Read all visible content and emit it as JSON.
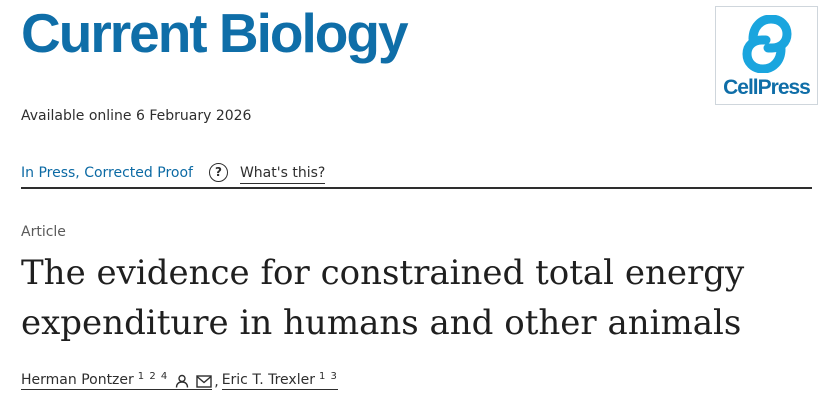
{
  "journal": {
    "title": "Current Biology"
  },
  "publisher": {
    "name": "CellPress",
    "logo_icon": "cellpress-logo-icon",
    "color": "#0f6ea8"
  },
  "availability": {
    "text": "Available online 6 February 2026"
  },
  "status": {
    "label": "In Press, Corrected Proof",
    "help_icon": "help-circle-icon",
    "help_glyph": "?",
    "help_link": "What's this?"
  },
  "article": {
    "type": "Article",
    "title": "The evidence for constrained total energy expenditure in humans and other animals"
  },
  "authors": [
    {
      "name": "Herman Pontzer",
      "affiliations": "1 2 4",
      "icons": [
        "person-icon",
        "mail-icon"
      ]
    },
    {
      "name": "Eric T. Trexler",
      "affiliations": "1 3"
    }
  ],
  "author_separator": ","
}
